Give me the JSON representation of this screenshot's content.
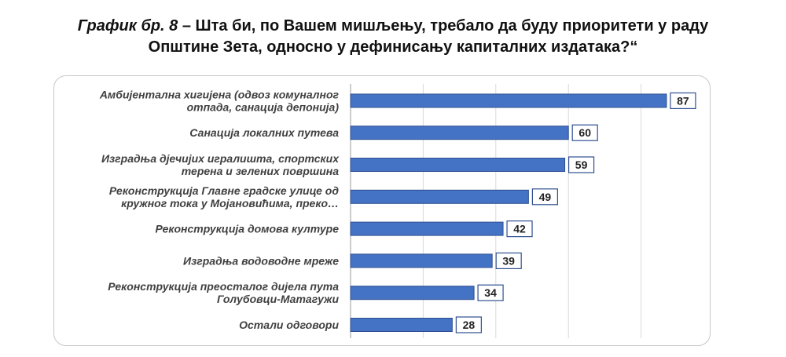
{
  "title": {
    "lead": "График бр. 8",
    "line1_rest": " – Шта би, по Вашем мишљењу, требало да буду приоритети у раду",
    "line2": "Општине Зета, односно у дефинисању капиталних издатака?“"
  },
  "chart_data": {
    "type": "bar",
    "orientation": "horizontal",
    "categories": [
      [
        "Амбијентална хигијена (одвоз комуналног",
        "отпада, санација депонија)"
      ],
      [
        "Санација локалних путева"
      ],
      [
        "Изградња дјечијих игралишта, спортских",
        "терена и зелених површина"
      ],
      [
        "Реконструкција Главне градске улице од",
        "кружног тока у Мојановићима, преко…"
      ],
      [
        "Реконструкција домова културе"
      ],
      [
        "Изградња водоводне мреже"
      ],
      [
        "Реконструкција преосталог дијела пута",
        "Голубовци-Матагужи"
      ],
      [
        "Остали одговори"
      ]
    ],
    "values": [
      87,
      60,
      59,
      49,
      42,
      39,
      34,
      28
    ],
    "xlim": [
      0,
      100
    ],
    "grid": "vertical",
    "data_labels": true,
    "bar_color": "#4472c4",
    "bar_edge_color": "#2f4f8f"
  }
}
